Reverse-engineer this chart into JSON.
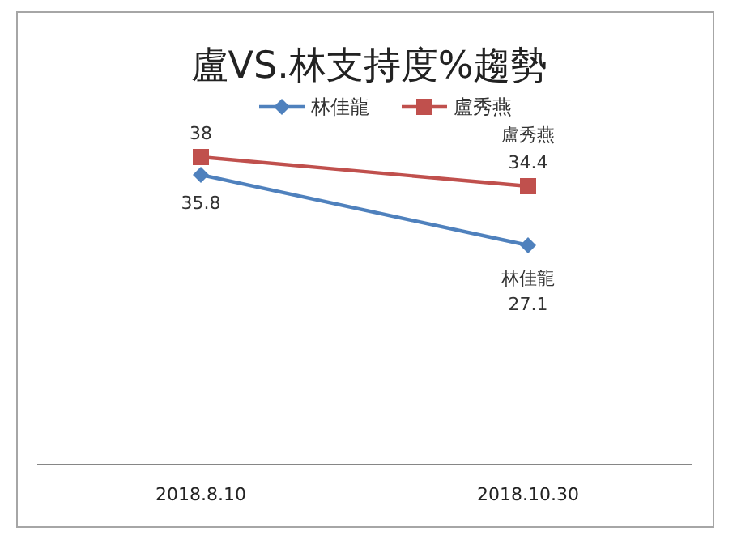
{
  "chart_data": {
    "type": "line",
    "title": "盧VS.林支持度%趨勢",
    "categories": [
      "2018.8.10",
      "2018.10.30"
    ],
    "series": [
      {
        "name": "林佳龍",
        "color": "#4f81bd",
        "marker": "diamond",
        "values": [
          35.8,
          27.1
        ]
      },
      {
        "name": "盧秀燕",
        "color": "#c0504d",
        "marker": "square",
        "values": [
          38,
          34.4
        ]
      }
    ],
    "data_labels": true,
    "legend": "top",
    "tick_labels": "x",
    "annotations": [
      {
        "text": "盧秀燕",
        "x": "2018.10.30",
        "y": 34.4
      },
      {
        "text": "林佳龍",
        "x": "2018.10.30",
        "y": 27.1
      }
    ]
  }
}
